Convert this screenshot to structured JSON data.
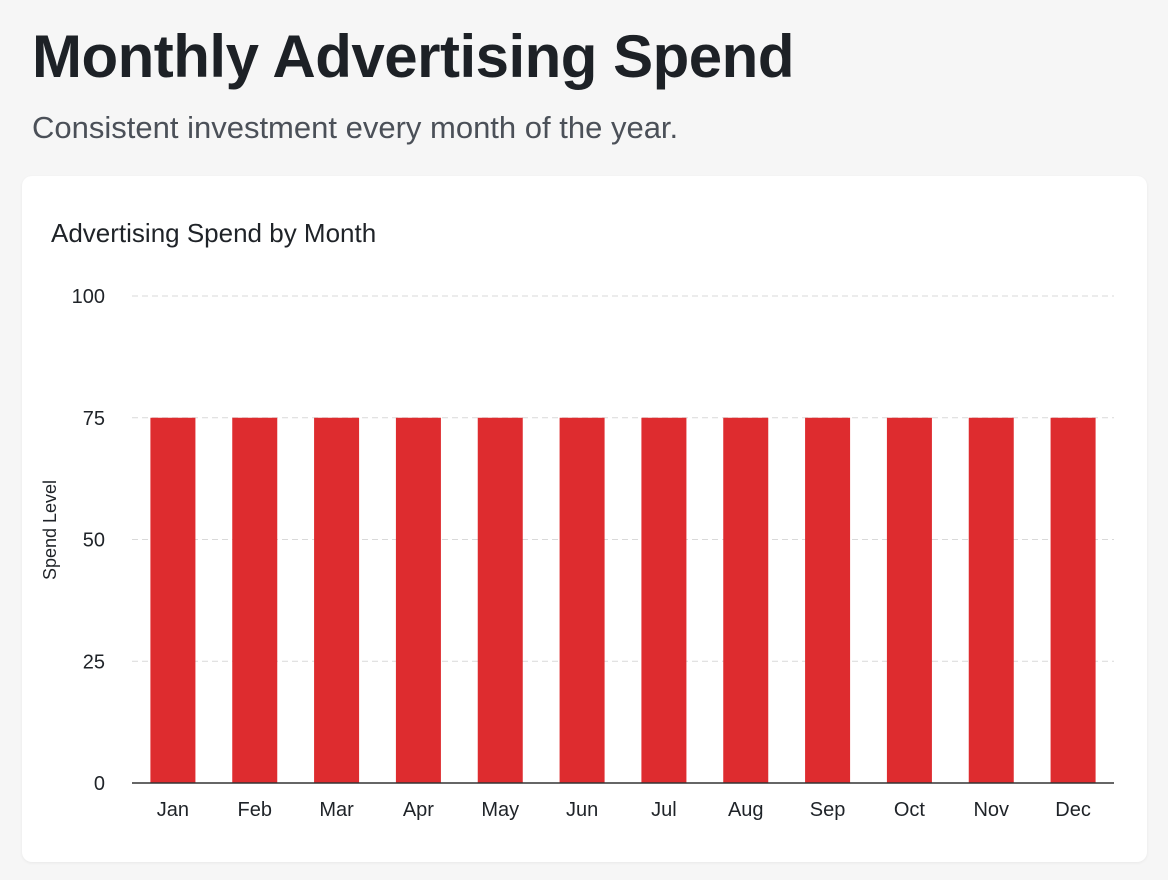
{
  "header": {
    "title": "Monthly Advertising Spend",
    "subtitle": "Consistent investment every month of the year."
  },
  "colors": {
    "bar": "#de2c2f",
    "grid": "#d9d9d9",
    "axis": "#333333"
  },
  "chart_data": {
    "type": "bar",
    "title": "Advertising Spend by Month",
    "xlabel": "",
    "ylabel": "Spend Level",
    "categories": [
      "Jan",
      "Feb",
      "Mar",
      "Apr",
      "May",
      "Jun",
      "Jul",
      "Aug",
      "Sep",
      "Oct",
      "Nov",
      "Dec"
    ],
    "values": [
      75,
      75,
      75,
      75,
      75,
      75,
      75,
      75,
      75,
      75,
      75,
      75
    ],
    "ylim": [
      0,
      100
    ],
    "yticks": [
      0,
      25,
      50,
      75,
      100
    ],
    "grid": true,
    "legend": "none"
  }
}
